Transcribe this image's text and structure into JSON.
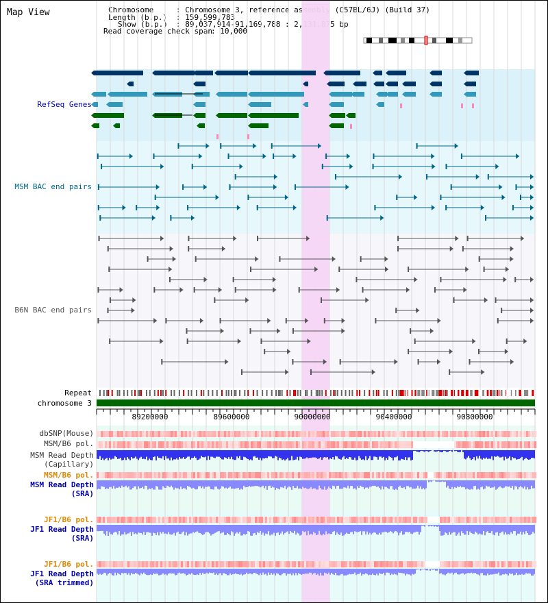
{
  "title": "Map View",
  "info": {
    "chromosome_label": "Chromosome",
    "chromosome_value": ": Chromosome 3, reference assembly (C57BL/6J) (Build 37)",
    "length_label": "Length (b.p.)",
    "length_value": ": 159,599,783",
    "show_label": "Show (b.p.)",
    "show_value": ": 89,037,914-91,169,788 : 2,131,875 bp",
    "coverage_label": "Read coverage check span",
    "coverage_value": ": 10,000"
  },
  "tracks": {
    "refseq": "RefSeq Genes",
    "msm_bac": "MSM BAC end pairs",
    "b6n_bac": "B6N BAC end pairs",
    "repeat": "Repeat",
    "chromosome": "chromosome 3",
    "dbsnp": "dbSNP(Mouse)",
    "msm_b6_pol_1": "MSM/B6 pol.",
    "msm_read_depth_cap_1": "MSM Read Depth",
    "msm_read_depth_cap_2": "(Capillary)",
    "msm_b6_pol_2": "MSM/B6 pol.",
    "msm_read_depth_sra_1": "MSM Read Depth",
    "msm_read_depth_sra_2": "(SRA)",
    "jf1_b6_pol_1": "JF1/B6 pol.",
    "jf1_read_depth_1": "JF1 Read Depth",
    "jf1_read_depth_2": "(SRA)",
    "jf1_b6_pol_2": "JF1/B6 pol.",
    "jf1_trim_1": "JF1 Read Depth",
    "jf1_trim_2": "(SRA trimmed)"
  },
  "axis_ticks": [
    "89200000",
    "89600000",
    "90000000",
    "90400000",
    "90800000"
  ],
  "colors": {
    "refseq_dark": "#003366",
    "refseq_mid": "#3399bb",
    "refseq_green": "#006600",
    "msm_bac": "#006688",
    "b6n_bac": "#555555",
    "highlight": "#f5d6f5",
    "chromosome_bar": "#006600",
    "depth_blue": "#3333ee",
    "depth_light": "#8888ff",
    "pol_red": "#ff7777",
    "label_blue": "#0000aa",
    "label_orange": "#dd8800",
    "label_teal": "#006688"
  }
}
